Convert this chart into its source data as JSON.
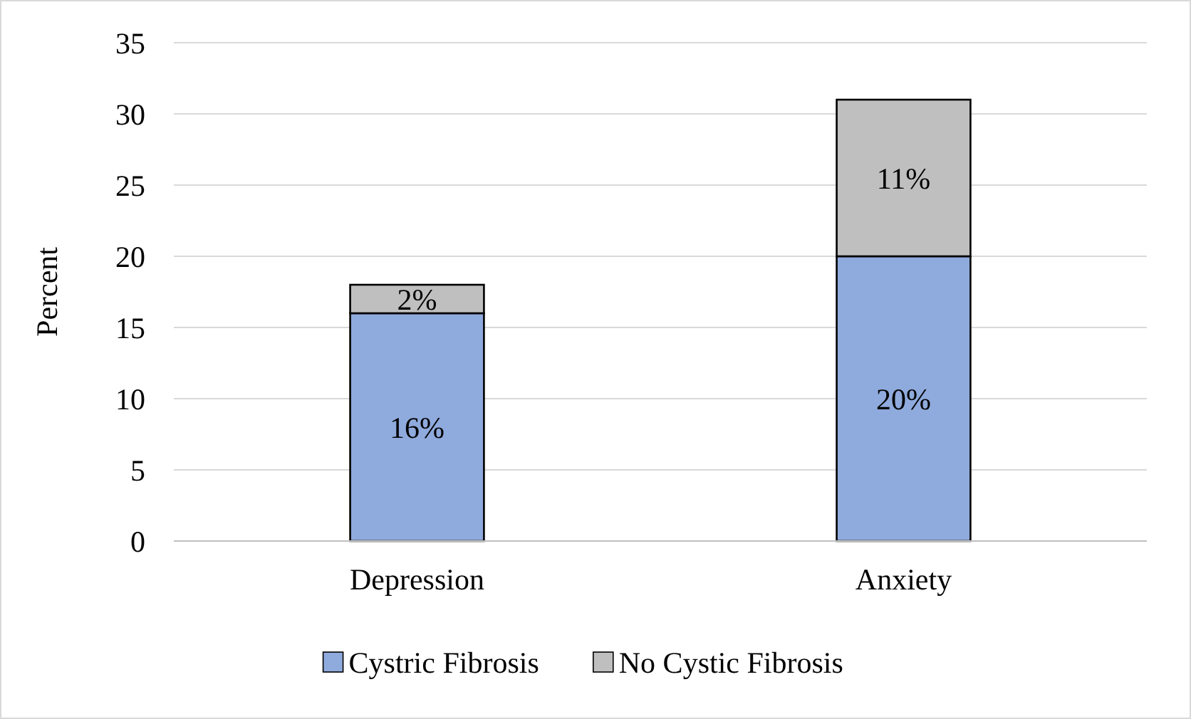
{
  "chart_data": {
    "type": "bar",
    "stacked": true,
    "ylabel": "Percent",
    "categories": [
      "Depression",
      "Anxiety"
    ],
    "series": [
      {
        "name": "Cystric Fibrosis",
        "color": "#8faadc",
        "values": [
          16,
          20
        ],
        "value_labels": [
          "16%",
          "20%"
        ]
      },
      {
        "name": "No Cystic Fibrosis",
        "color": "#bfbfbf",
        "values": [
          2,
          11
        ],
        "value_labels": [
          "2%",
          "11%"
        ]
      }
    ],
    "ylim": [
      0,
      35
    ],
    "yticks": [
      0,
      5,
      10,
      15,
      20,
      25,
      30,
      35
    ],
    "grid": "y",
    "legend": "bottom"
  }
}
